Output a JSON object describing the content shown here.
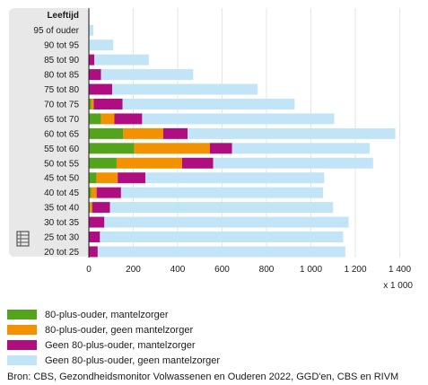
{
  "chart_data": {
    "type": "bar",
    "orientation": "horizontal",
    "stacked": true,
    "y_axis_title": "Leeftijd",
    "x_unit_label": "x 1 000",
    "xlim": [
      0,
      1500
    ],
    "x_ticks": [
      0,
      200,
      400,
      600,
      800,
      1000,
      1200,
      1400
    ],
    "x_tick_labels": [
      "0",
      "200",
      "400",
      "600",
      "800",
      "1 000",
      "1 200",
      "1 400"
    ],
    "grid": "vertical",
    "legend_position": "bottom",
    "categories": [
      "95 of ouder",
      "90 tot 95",
      "85 tot 90",
      "80 tot 85",
      "75 tot 80",
      "70 tot 75",
      "65 tot 70",
      "60 tot 65",
      "55 tot 60",
      "50 tot 55",
      "45 tot 50",
      "40 tot 45",
      "35 tot 40",
      "30 tot 35",
      "25 tot 30",
      "20 tot 25"
    ],
    "series": [
      {
        "name": "80-plus-ouder, mantelzorger",
        "color": "#53a31d",
        "values": [
          0,
          0,
          0,
          0,
          0,
          10,
          55,
          155,
          205,
          125,
          35,
          10,
          5,
          0,
          0,
          0
        ]
      },
      {
        "name": "80-plus-ouder, geen mantelzorger",
        "color": "#f39200",
        "values": [
          0,
          0,
          0,
          0,
          0,
          12,
          60,
          180,
          340,
          295,
          95,
          25,
          10,
          0,
          0,
          0
        ]
      },
      {
        "name": "Geen 80-plus-ouder, mantelzorger",
        "color": "#af0e80",
        "values": [
          0,
          0,
          25,
          55,
          105,
          130,
          125,
          110,
          100,
          140,
          125,
          110,
          80,
          70,
          50,
          40
        ]
      },
      {
        "name": "Geen 80-plus-ouder, geen mantelzorger",
        "color": "#c2e4f7",
        "values": [
          20,
          110,
          245,
          415,
          655,
          775,
          865,
          935,
          620,
          720,
          805,
          910,
          1005,
          1100,
          1095,
          1115
        ]
      }
    ]
  },
  "source": "Bron: CBS, Gezondheidsmonitor Volwassenen en Ouderen 2022, GGD'en, CBS en RIVM"
}
